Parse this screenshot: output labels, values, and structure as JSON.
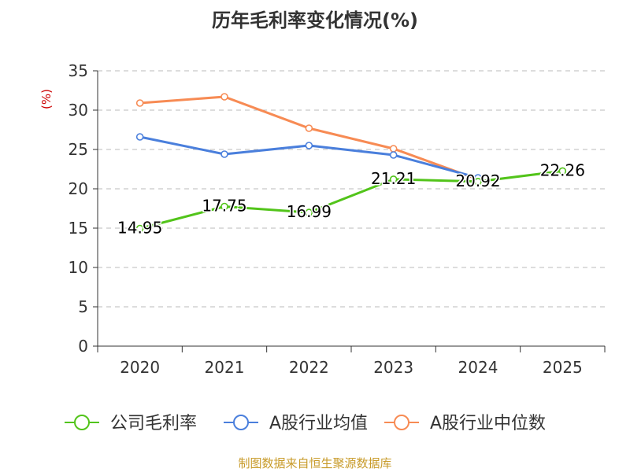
{
  "chart_data": {
    "type": "line",
    "title": "历年毛利率变化情况(%)",
    "ylabel": "(%)",
    "xlabel": "",
    "categories": [
      "2020",
      "2021",
      "2022",
      "2023",
      "2024",
      "2025"
    ],
    "ylim": [
      0,
      35
    ],
    "yticks": [
      0,
      5,
      10,
      15,
      20,
      25,
      30,
      35
    ],
    "grid": true,
    "series": [
      {
        "name": "公司毛利率",
        "color": "#52c41a",
        "values": [
          14.95,
          17.75,
          16.99,
          21.21,
          20.92,
          22.26
        ],
        "labels": [
          "14.95",
          "17.75",
          "16.99",
          "21.21",
          "20.92",
          "22.26"
        ]
      },
      {
        "name": "A股行业均值",
        "color": "#4a7fdc",
        "values": [
          26.6,
          24.4,
          25.5,
          24.3,
          21.4,
          null
        ]
      },
      {
        "name": "A股行业中位数",
        "color": "#f78b54",
        "values": [
          30.9,
          31.7,
          27.7,
          25.1,
          21.2,
          null
        ]
      }
    ],
    "legend_position": "bottom",
    "source_note": "制图数据来自恒生聚源数据库"
  },
  "colors": {
    "axis": "#333333",
    "grid": "#bbbbbb",
    "ylabel": "#cc0000",
    "source": "#c89b2a"
  }
}
